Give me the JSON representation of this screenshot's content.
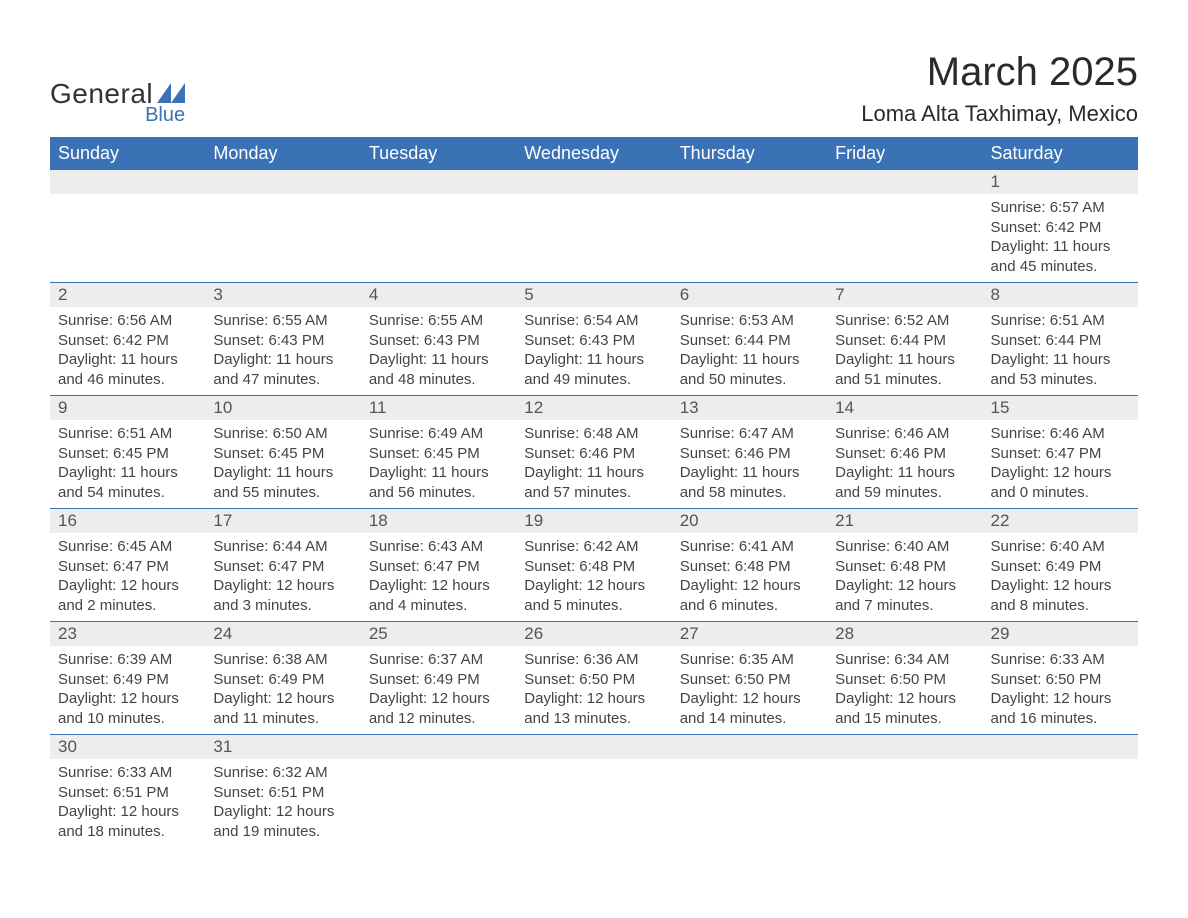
{
  "logo": {
    "text_main": "General",
    "text_sub": "Blue",
    "shape_color": "#3b72b5"
  },
  "title": "March 2025",
  "location": "Loma Alta Taxhimay, Mexico",
  "colors": {
    "header_bg": "#3b72b5",
    "header_text": "#ffffff",
    "daynum_bg": "#ededed",
    "border": "#3b72b5",
    "body_text": "#444444"
  },
  "weekdays": [
    "Sunday",
    "Monday",
    "Tuesday",
    "Wednesday",
    "Thursday",
    "Friday",
    "Saturday"
  ],
  "labels": {
    "sunrise": "Sunrise:",
    "sunset": "Sunset:",
    "daylight": "Daylight:",
    "hours": "hours",
    "and": "and",
    "minutes": "minutes."
  },
  "weeks": [
    [
      null,
      null,
      null,
      null,
      null,
      null,
      {
        "day": "1",
        "sunrise": "6:57 AM",
        "sunset": "6:42 PM",
        "dl_h": "11",
        "dl_m": "45"
      }
    ],
    [
      {
        "day": "2",
        "sunrise": "6:56 AM",
        "sunset": "6:42 PM",
        "dl_h": "11",
        "dl_m": "46"
      },
      {
        "day": "3",
        "sunrise": "6:55 AM",
        "sunset": "6:43 PM",
        "dl_h": "11",
        "dl_m": "47"
      },
      {
        "day": "4",
        "sunrise": "6:55 AM",
        "sunset": "6:43 PM",
        "dl_h": "11",
        "dl_m": "48"
      },
      {
        "day": "5",
        "sunrise": "6:54 AM",
        "sunset": "6:43 PM",
        "dl_h": "11",
        "dl_m": "49"
      },
      {
        "day": "6",
        "sunrise": "6:53 AM",
        "sunset": "6:44 PM",
        "dl_h": "11",
        "dl_m": "50"
      },
      {
        "day": "7",
        "sunrise": "6:52 AM",
        "sunset": "6:44 PM",
        "dl_h": "11",
        "dl_m": "51"
      },
      {
        "day": "8",
        "sunrise": "6:51 AM",
        "sunset": "6:44 PM",
        "dl_h": "11",
        "dl_m": "53"
      }
    ],
    [
      {
        "day": "9",
        "sunrise": "6:51 AM",
        "sunset": "6:45 PM",
        "dl_h": "11",
        "dl_m": "54"
      },
      {
        "day": "10",
        "sunrise": "6:50 AM",
        "sunset": "6:45 PM",
        "dl_h": "11",
        "dl_m": "55"
      },
      {
        "day": "11",
        "sunrise": "6:49 AM",
        "sunset": "6:45 PM",
        "dl_h": "11",
        "dl_m": "56"
      },
      {
        "day": "12",
        "sunrise": "6:48 AM",
        "sunset": "6:46 PM",
        "dl_h": "11",
        "dl_m": "57"
      },
      {
        "day": "13",
        "sunrise": "6:47 AM",
        "sunset": "6:46 PM",
        "dl_h": "11",
        "dl_m": "58"
      },
      {
        "day": "14",
        "sunrise": "6:46 AM",
        "sunset": "6:46 PM",
        "dl_h": "11",
        "dl_m": "59"
      },
      {
        "day": "15",
        "sunrise": "6:46 AM",
        "sunset": "6:47 PM",
        "dl_h": "12",
        "dl_m": "0"
      }
    ],
    [
      {
        "day": "16",
        "sunrise": "6:45 AM",
        "sunset": "6:47 PM",
        "dl_h": "12",
        "dl_m": "2"
      },
      {
        "day": "17",
        "sunrise": "6:44 AM",
        "sunset": "6:47 PM",
        "dl_h": "12",
        "dl_m": "3"
      },
      {
        "day": "18",
        "sunrise": "6:43 AM",
        "sunset": "6:47 PM",
        "dl_h": "12",
        "dl_m": "4"
      },
      {
        "day": "19",
        "sunrise": "6:42 AM",
        "sunset": "6:48 PM",
        "dl_h": "12",
        "dl_m": "5"
      },
      {
        "day": "20",
        "sunrise": "6:41 AM",
        "sunset": "6:48 PM",
        "dl_h": "12",
        "dl_m": "6"
      },
      {
        "day": "21",
        "sunrise": "6:40 AM",
        "sunset": "6:48 PM",
        "dl_h": "12",
        "dl_m": "7"
      },
      {
        "day": "22",
        "sunrise": "6:40 AM",
        "sunset": "6:49 PM",
        "dl_h": "12",
        "dl_m": "8"
      }
    ],
    [
      {
        "day": "23",
        "sunrise": "6:39 AM",
        "sunset": "6:49 PM",
        "dl_h": "12",
        "dl_m": "10"
      },
      {
        "day": "24",
        "sunrise": "6:38 AM",
        "sunset": "6:49 PM",
        "dl_h": "12",
        "dl_m": "11"
      },
      {
        "day": "25",
        "sunrise": "6:37 AM",
        "sunset": "6:49 PM",
        "dl_h": "12",
        "dl_m": "12"
      },
      {
        "day": "26",
        "sunrise": "6:36 AM",
        "sunset": "6:50 PM",
        "dl_h": "12",
        "dl_m": "13"
      },
      {
        "day": "27",
        "sunrise": "6:35 AM",
        "sunset": "6:50 PM",
        "dl_h": "12",
        "dl_m": "14"
      },
      {
        "day": "28",
        "sunrise": "6:34 AM",
        "sunset": "6:50 PM",
        "dl_h": "12",
        "dl_m": "15"
      },
      {
        "day": "29",
        "sunrise": "6:33 AM",
        "sunset": "6:50 PM",
        "dl_h": "12",
        "dl_m": "16"
      }
    ],
    [
      {
        "day": "30",
        "sunrise": "6:33 AM",
        "sunset": "6:51 PM",
        "dl_h": "12",
        "dl_m": "18"
      },
      {
        "day": "31",
        "sunrise": "6:32 AM",
        "sunset": "6:51 PM",
        "dl_h": "12",
        "dl_m": "19"
      },
      null,
      null,
      null,
      null,
      null
    ]
  ]
}
